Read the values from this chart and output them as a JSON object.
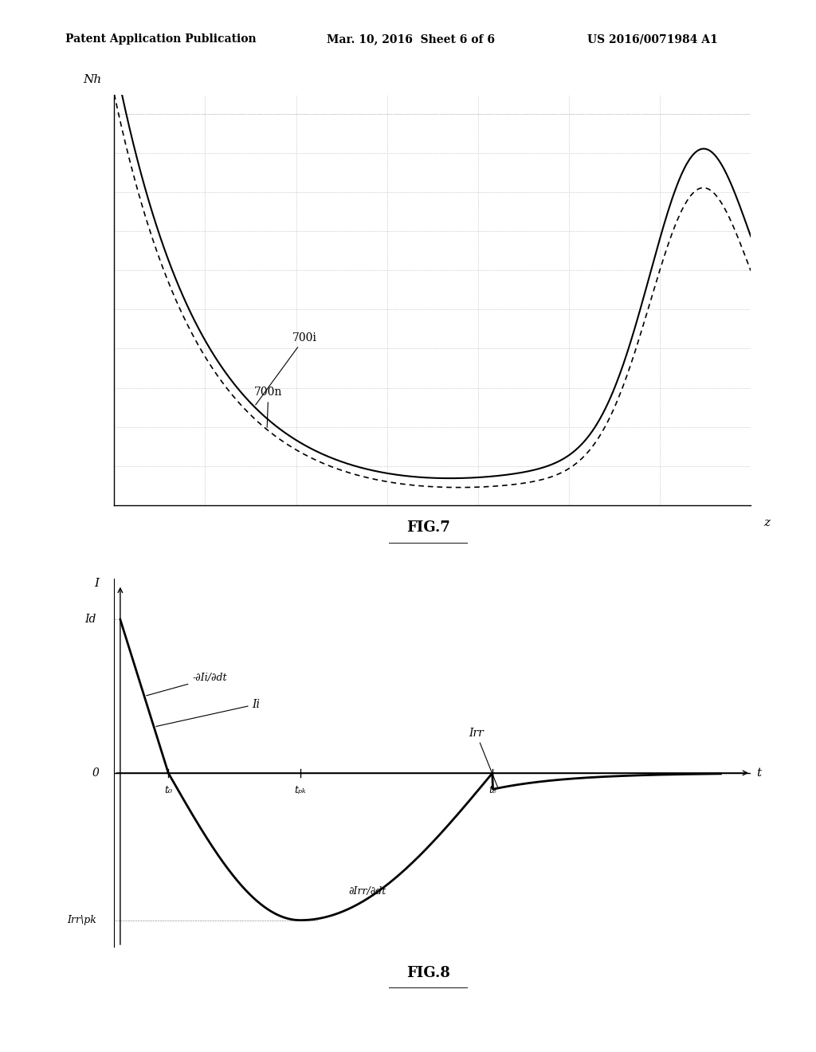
{
  "header_left": "Patent Application Publication",
  "header_mid": "Mar. 10, 2016  Sheet 6 of 6",
  "header_right": "US 2016/0071984 A1",
  "fig7_title": "FIG.7",
  "fig8_title": "FIG.8",
  "fig7_ylabel": "Nh",
  "fig7_xlabel": "z",
  "fig7_label_700i": "700i",
  "fig7_label_700n": "700n",
  "fig8_ylabel_I": "I",
  "fig8_ylabel_Id": "Id",
  "fig8_xlabel": "t",
  "fig8_label_0": "0",
  "fig8_label_Ii": "Ii",
  "fig8_label_Irr": "Irr",
  "fig8_label_dIi": "-∂Ii/∂dt",
  "fig8_label_dIrr": "∂Irr/∂dt",
  "fig8_label_Irrpk": "Irr\\pk",
  "fig8_label_t0": "t₀",
  "fig8_label_tpk": "tₚₖ",
  "fig8_label_tf": "tₑ",
  "bg_color": "#ffffff",
  "line_color": "#000000",
  "grid_color": "#aaaaaa",
  "grid_style": "dotted"
}
